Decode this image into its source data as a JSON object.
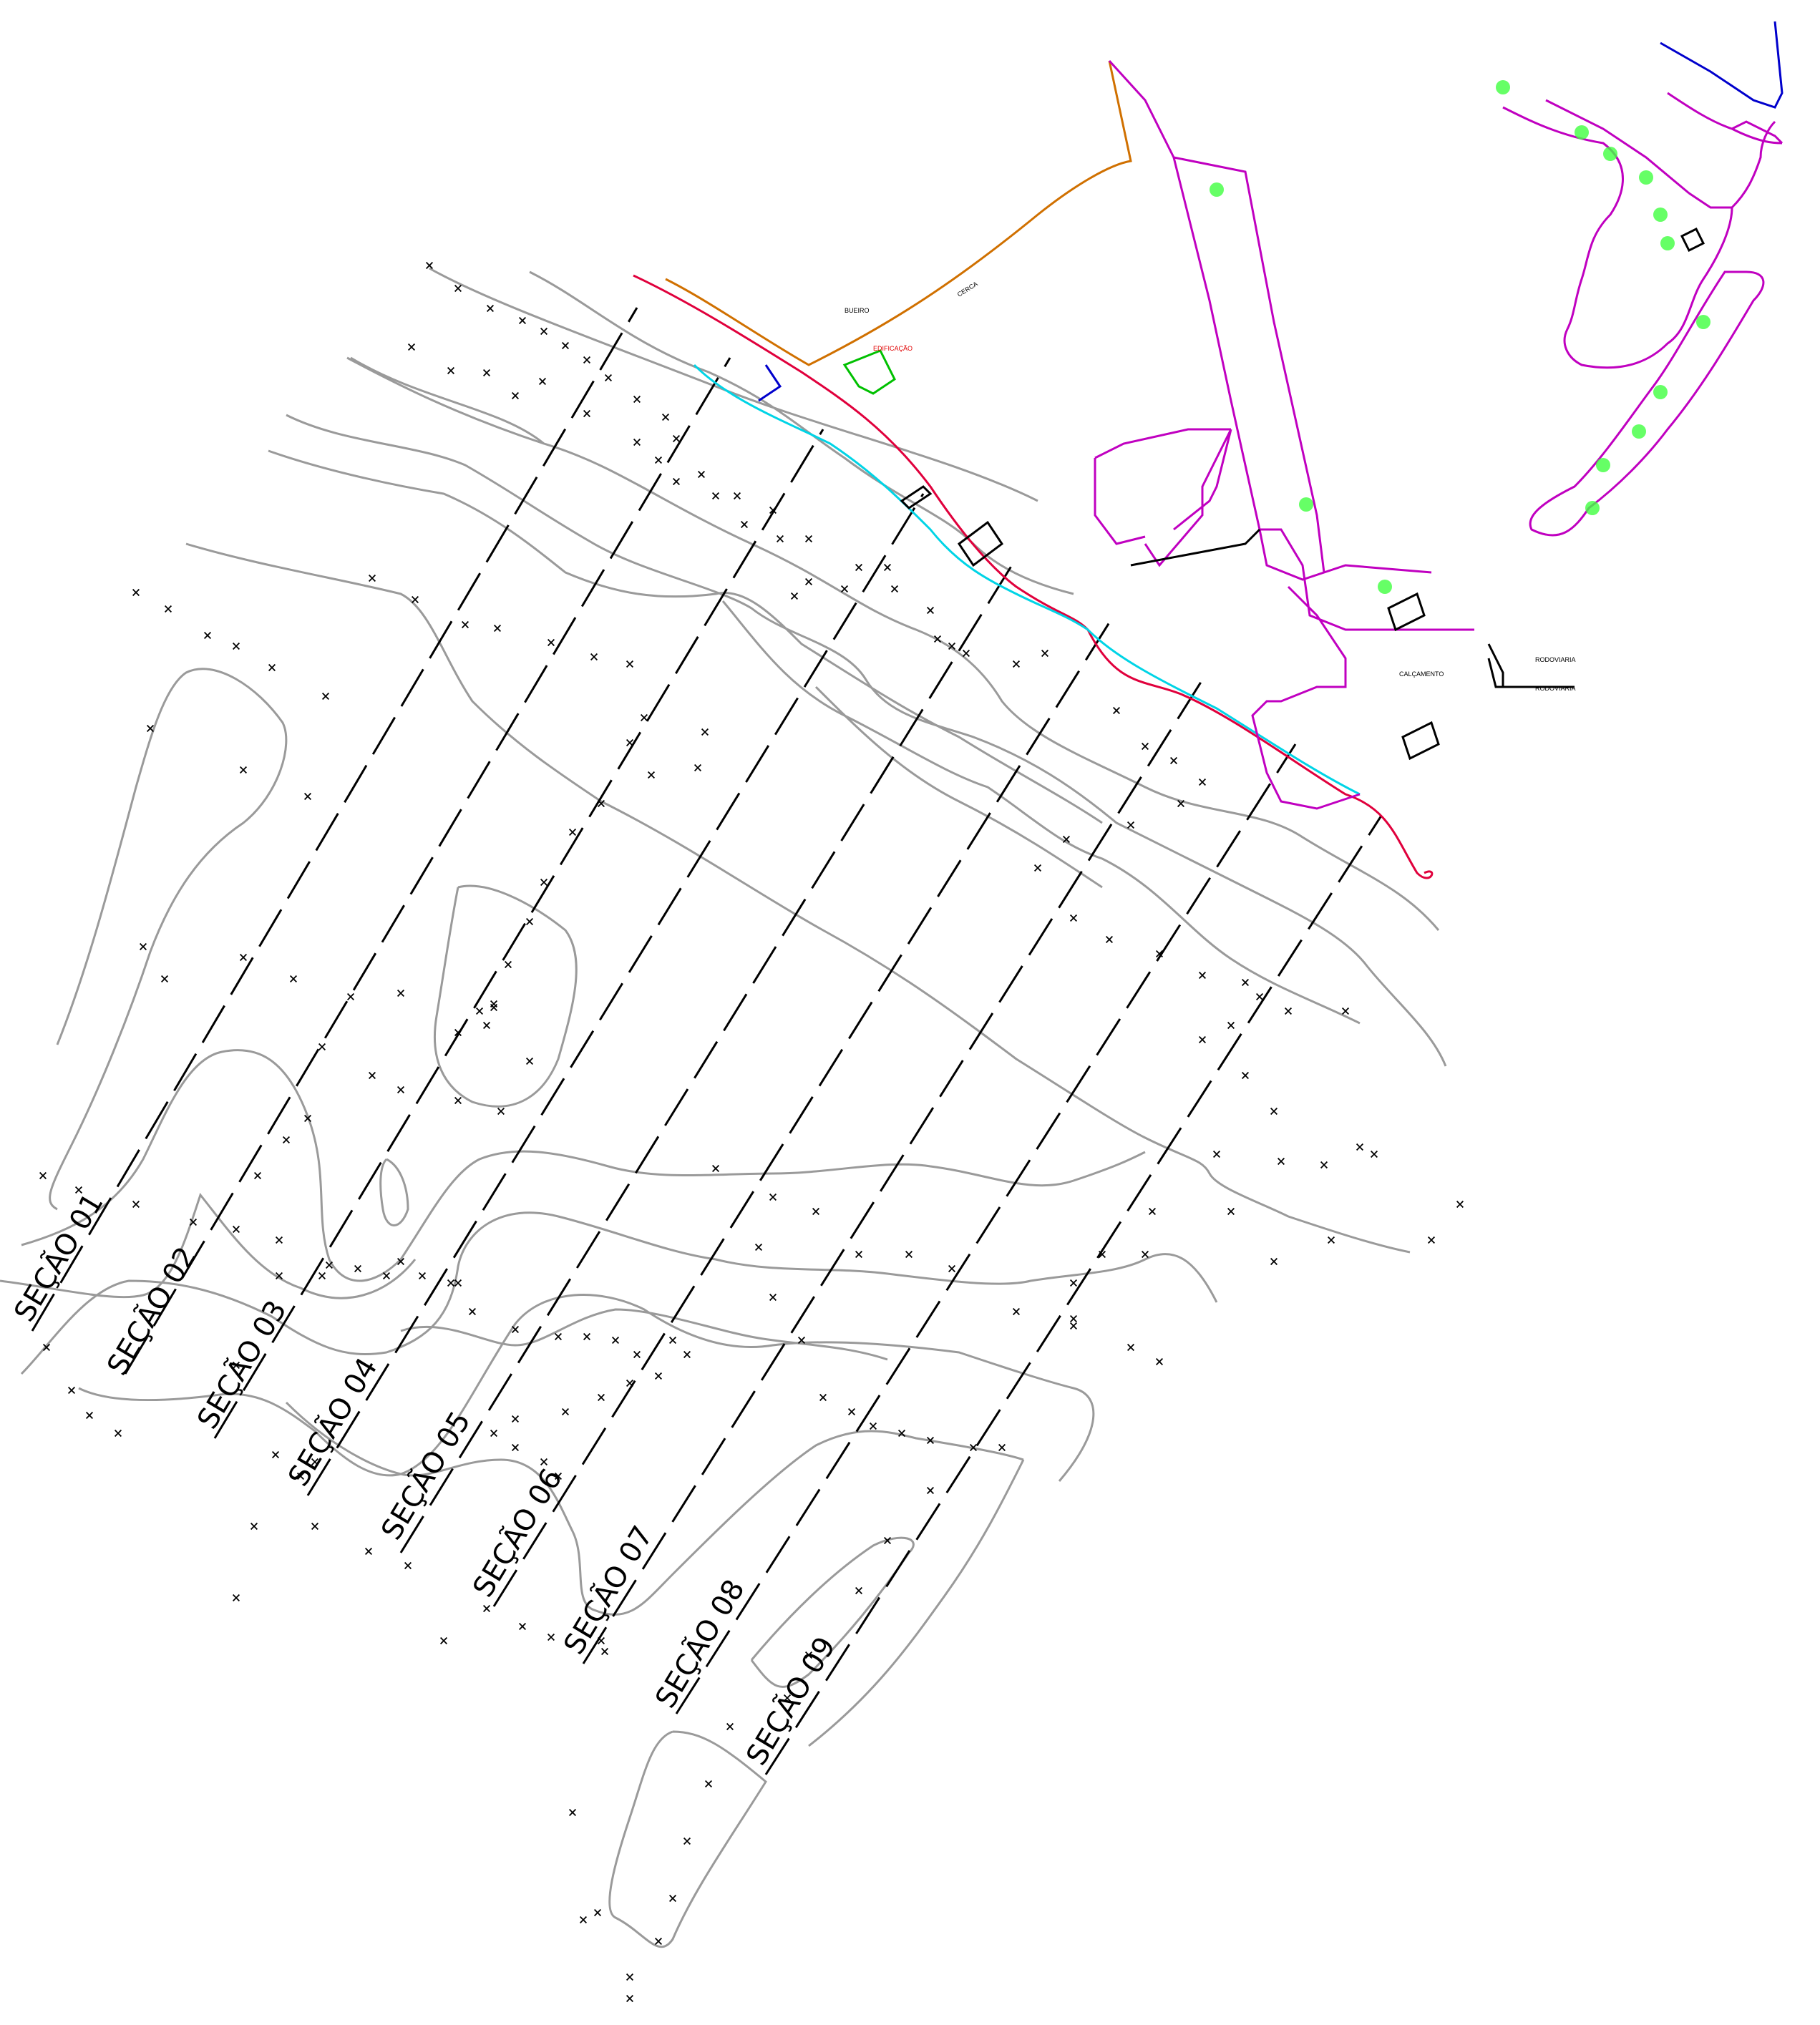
{
  "sections": [
    {
      "id": "s1",
      "label": "SEÇÃO 01"
    },
    {
      "id": "s2",
      "label": "SEÇÃO 02"
    },
    {
      "id": "s3",
      "label": "SEÇÃO 03"
    },
    {
      "id": "s4",
      "label": "SEÇÃO 04"
    },
    {
      "id": "s5",
      "label": "SEÇÃO 05"
    },
    {
      "id": "s6",
      "label": "SEÇÃO 06"
    },
    {
      "id": "s7",
      "label": "SEÇÃO 07"
    },
    {
      "id": "s8",
      "label": "SEÇÃO 08"
    },
    {
      "id": "s9",
      "label": "SEÇÃO 09"
    }
  ],
  "annotations": {
    "calcamento": "CALÇAMENTO",
    "edificacao": "EDIFICAÇÃO",
    "rodovia_1": "RODOVIARIA",
    "rodovia_2": "RODOVIARIA",
    "bueiro": "BUEIRO",
    "cerca": "CERCA"
  },
  "point_symbol": "×",
  "colors": {
    "contour": "#9a9a9a",
    "section_line": "#000000",
    "road_edge": "#e0003c",
    "road_centerline": "#00d4e6",
    "path": "#c000c0",
    "fence": "#d07000",
    "drainage": "#0000cc",
    "tree": "#00e000",
    "label_red": "#e00000"
  },
  "icons": {
    "survey_point": "x-mark-icon",
    "tree": "tree-circle-icon"
  }
}
